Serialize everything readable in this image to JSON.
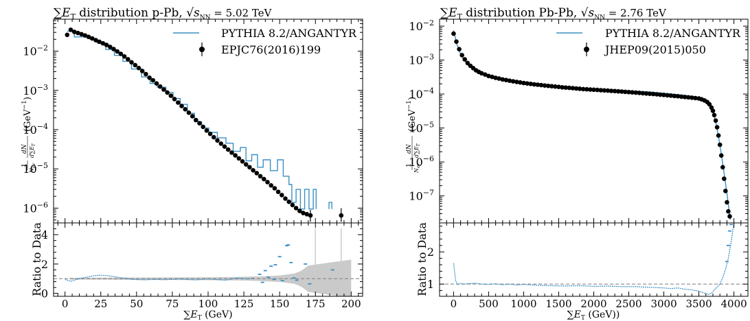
{
  "figure": "Two-panel ΣET distribution comparison",
  "chart_data": [
    {
      "type": "line",
      "title": "∑E_T distribution p-Pb, √s_NN = 5.02 TeV",
      "title_parts": {
        "sum": "∑",
        "E": "E",
        "T": "T",
        "text": " distribution p-Pb, ",
        "sqrt": "√",
        "s": "s",
        "NN": "NN",
        "energy": " = 5.02 TeV"
      },
      "xlabel": "∑E_T (GeV)",
      "xlabel_parts": {
        "sum": "∑",
        "E": "E",
        "T": "T",
        "unit": " (GeV)"
      },
      "ylabel": "1/N_ev dN/d∑E_T (GeV^-1)",
      "ylabel_parts": {
        "one": "1",
        "nev": "N",
        "ev": "ev",
        "dn": "dN",
        "dsum": "d∑E",
        "t": "T",
        "unit": "(GeV",
        "exp": "−1",
        "close": ")"
      },
      "ratio_ylabel": "Ratio to Data",
      "xlim": [
        -8,
        208
      ],
      "ylim": [
        4.2e-07,
        0.065
      ],
      "yscale": "log",
      "x_ticks": [
        0,
        25,
        50,
        75,
        100,
        125,
        150,
        175,
        200
      ],
      "x_tick_labels": [
        "0",
        "25",
        "50",
        "75",
        "100",
        "125",
        "150",
        "175",
        "200"
      ],
      "y_ticks": [
        1e-06,
        1e-05,
        0.0001,
        0.001,
        0.01
      ],
      "y_tick_labels": [
        {
          "b": "10",
          "e": "−6"
        },
        {
          "b": "10",
          "e": "−5"
        },
        {
          "b": "10",
          "e": "−4"
        },
        {
          "b": "10",
          "e": "−3"
        },
        {
          "b": "10",
          "e": "−2"
        }
      ],
      "ratio_ylim": [
        -0.2,
        4.8
      ],
      "ratio_y_ticks": [
        0,
        2,
        4
      ],
      "ratio_y_tick_labels": [
        "0",
        "2",
        "4"
      ],
      "legend": {
        "position": "top-right",
        "entries": [
          "PYTHIA 8.2/ANGANTYR",
          "EPJC76(2016)199"
        ]
      },
      "colors": {
        "mc": "#3a8fc4",
        "data": "#000000",
        "band": "#bdbdbd",
        "reference": "#888888"
      },
      "mc_step_segments": [
        [
          [
            1.5,
            0.032
          ],
          [
            6.5,
            0.032
          ],
          [
            6.5,
            0.023
          ],
          [
            13.5,
            0.023
          ],
          [
            13.5,
            0.024
          ],
          [
            17.5,
            0.024
          ],
          [
            17.5,
            0.02
          ],
          [
            22.5,
            0.02
          ],
          [
            22.5,
            0.016
          ],
          [
            28.5,
            0.016
          ],
          [
            28.5,
            0.011
          ],
          [
            34.5,
            0.011
          ],
          [
            34.5,
            0.0078
          ],
          [
            40.5,
            0.0078
          ],
          [
            40.5,
            0.0055
          ],
          [
            46.5,
            0.0055
          ],
          [
            46.5,
            0.0035
          ],
          [
            53.5,
            0.0035
          ],
          [
            53.5,
            0.0022
          ],
          [
            59.5,
            0.0022
          ],
          [
            59.5,
            0.0015
          ],
          [
            64.5,
            0.0015
          ],
          [
            64.5,
            0.0012
          ],
          [
            70.5,
            0.0012
          ],
          [
            70.5,
            0.00088
          ],
          [
            75.5,
            0.00088
          ],
          [
            75.5,
            0.00062
          ],
          [
            80.5,
            0.00062
          ],
          [
            80.5,
            0.00044
          ],
          [
            85.5,
            0.00044
          ],
          [
            85.5,
            0.00026
          ],
          [
            90.5,
            0.00026
          ],
          [
            90.5,
            0.00016
          ],
          [
            95.5,
            0.00016
          ],
          [
            95.5,
            0.00011
          ],
          [
            100.5,
            0.00011
          ],
          [
            100.5,
            8.5e-05
          ],
          [
            106.5,
            8.5e-05
          ],
          [
            106.5,
            6.2e-05
          ],
          [
            112.5,
            6.2e-05
          ],
          [
            112.5,
            4.5e-05
          ],
          [
            117.5,
            4.5e-05
          ],
          [
            117.5,
            2.8e-05
          ],
          [
            122.5,
            2.8e-05
          ],
          [
            122.5,
            3.5e-05
          ],
          [
            126.5,
            3.5e-05
          ],
          [
            126.5,
            1.6e-05
          ],
          [
            130.5,
            1.6e-05
          ],
          [
            130.5,
            2.3e-05
          ],
          [
            134.5,
            2.3e-05
          ],
          [
            134.5,
            1.1e-05
          ],
          [
            138.5,
            1.1e-05
          ],
          [
            138.5,
            1.7e-05
          ],
          [
            143.5,
            1.7e-05
          ],
          [
            143.5,
            9e-06
          ],
          [
            148.5,
            9e-06
          ],
          [
            148.5,
            1.7e-05
          ],
          [
            152.5,
            1.7e-05
          ],
          [
            152.5,
            6.5e-06
          ],
          [
            156.5,
            6.5e-06
          ],
          [
            156.5,
            4e-06
          ],
          [
            158.5,
            4e-06
          ],
          [
            158.5,
            1.4e-06
          ],
          [
            161.5,
            1.4e-06
          ],
          [
            161.5,
            3e-06
          ],
          [
            164.5,
            3e-06
          ],
          [
            164.5,
            9.5e-07
          ],
          [
            167.5,
            9.5e-07
          ],
          [
            167.5,
            3e-06
          ],
          [
            170.5,
            3e-06
          ],
          [
            170.5,
            9.5e-07
          ],
          [
            173.5,
            9.5e-07
          ],
          [
            173.5,
            3e-06
          ],
          [
            175.5,
            3e-06
          ],
          [
            175.5,
            9.5e-07
          ]
        ],
        [
          [
            184.5,
            9.5e-07
          ],
          [
            184.5,
            1.4e-06
          ],
          [
            186.5,
            1.4e-06
          ],
          [
            186.5,
            9.5e-07
          ]
        ]
      ],
      "data_x": [
        1.5,
        4.0,
        6.5,
        9.0,
        11.5,
        14.0,
        16.5,
        19.0,
        21.5,
        24.0,
        26.5,
        29.0,
        31.5,
        34.0,
        36.5,
        39.0,
        41.5,
        44.0,
        46.5,
        49.0,
        51.5,
        54.0,
        56.5,
        59.0,
        61.5,
        64.0,
        66.5,
        69.0,
        71.5,
        74.0,
        76.5,
        79.0,
        81.5,
        84.0,
        86.5,
        89.0,
        91.5,
        94.0,
        96.5,
        99.0,
        101.5,
        104.0,
        106.5,
        109.0,
        111.5,
        114.0,
        116.5,
        119.0,
        121.5,
        124.0,
        126.5,
        129.0,
        131.5,
        134.0,
        136.5,
        139.0,
        141.5,
        144.0,
        146.5,
        149.0,
        151.5,
        154.0,
        156.5,
        159.0,
        161.5,
        164.0,
        166.5,
        169.0,
        171.5,
        193.0
      ],
      "data_y": [
        0.026,
        0.035,
        0.031,
        0.029,
        0.027,
        0.025,
        0.023,
        0.021,
        0.019,
        0.0173,
        0.0158,
        0.0144,
        0.0128,
        0.0113,
        0.0098,
        0.0085,
        0.0073,
        0.0062,
        0.0052,
        0.0044,
        0.0037,
        0.0031,
        0.0026,
        0.0021,
        0.0018,
        0.0015,
        0.00125,
        0.00105,
        0.00088,
        0.00073,
        0.0006,
        0.00049,
        0.0004,
        0.00033,
        0.00027,
        0.00022,
        0.000175,
        0.000145,
        0.000118,
        9.5e-05,
        7.8e-05,
        6.4e-05,
        5.3e-05,
        4.4e-05,
        3.7e-05,
        3.1e-05,
        2.6e-05,
        2.2e-05,
        1.85e-05,
        1.55e-05,
        1.3e-05,
        1.1e-05,
        9.2e-06,
        7.8e-06,
        6.5e-06,
        5.5e-06,
        4.6e-06,
        3.8e-06,
        3.2e-06,
        2.6e-06,
        2.15e-06,
        1.75e-06,
        1.45e-06,
        1.2e-06,
        1e-06,
        8.5e-07,
        7.5e-07,
        7e-07,
        6.5e-07,
        6.5e-07
      ],
      "data_err_bars": [
        [
          171.5,
          4.5e-07,
          9e-07
        ],
        [
          193.0,
          4.5e-07,
          1e-06
        ]
      ],
      "data_err_x": [
        3.0,
        6.0,
        8.0,
        12.0,
        17.0,
        25.0,
        40.0,
        60.0,
        80.0,
        100.0,
        120.0,
        130.0,
        140.0,
        150.0,
        160.0,
        163.0,
        166.0,
        170.0,
        200.0
      ],
      "data_err_half": [
        0.055,
        0.055,
        0.06,
        0.06,
        0.065,
        0.07,
        0.08,
        0.08,
        0.09,
        0.1,
        0.12,
        0.14,
        0.17,
        0.22,
        0.35,
        0.45,
        0.6,
        0.9,
        1.3
      ],
      "ratio_line_x": [
        0,
        4,
        8,
        12,
        16,
        20,
        24,
        28,
        32,
        36,
        40,
        44,
        48,
        52,
        56,
        60,
        64,
        68,
        72,
        76,
        80,
        84,
        88,
        92,
        96,
        100,
        104,
        108,
        112,
        116,
        120,
        124,
        128,
        132
      ],
      "ratio_line_y": [
        0.95,
        0.82,
        0.95,
        1.05,
        1.12,
        1.2,
        1.24,
        1.22,
        1.18,
        1.12,
        1.05,
        1.0,
        0.95,
        0.93,
        0.92,
        0.94,
        0.95,
        0.93,
        0.94,
        0.96,
        0.98,
        0.96,
        0.93,
        0.92,
        0.96,
        0.98,
        0.95,
        0.93,
        0.9,
        0.97,
        1.05,
        1.02,
        0.98,
        1.05
      ],
      "ratio_scatter_x": [
        136.0,
        138.0,
        140.0,
        142.0,
        144.0,
        146.0,
        147.0,
        150.0,
        152.0,
        155.0,
        156.0,
        158.0,
        160.0,
        162.0,
        168.0,
        171.0,
        187.0
      ],
      "ratio_scatter_y": [
        1.3,
        0.75,
        1.55,
        1.1,
        1.85,
        0.95,
        1.95,
        2.5,
        0.88,
        3.25,
        3.3,
        2.1,
        1.05,
        0.9,
        2.0,
        0.65,
        1.6
      ],
      "ratio_gray_lines": [
        175.0,
        193.0
      ]
    },
    {
      "type": "line",
      "title": "∑E_T distribution Pb-Pb, √s_NN = 2.76 TeV",
      "title_parts": {
        "sum": "∑",
        "E": "E",
        "T": "T",
        "text": " distribution Pb-Pb, ",
        "sqrt": "√",
        "s": "s",
        "NN": "NN",
        "energy": " = 2.76 TeV"
      },
      "xlabel": "∑E_T (GeV))",
      "xlabel_parts": {
        "sum": "∑",
        "E": "E",
        "T": "T",
        "unit": " (GeV))"
      },
      "ylabel": "1/N_ev dN/d∑E_T (GeV^-1)",
      "ylabel_parts": {
        "one": "1",
        "nev": "N",
        "ev": "ev",
        "dn": "dN",
        "dsum": "d∑E",
        "t": "T",
        "unit": "(GeV",
        "exp": "−1",
        "close": ")"
      },
      "ratio_ylabel": "Ratio to Data",
      "xlim": [
        -200,
        4200
      ],
      "ylim": [
        1.6e-08,
        0.016
      ],
      "yscale": "log",
      "x_ticks": [
        0,
        500,
        1000,
        1500,
        2000,
        2500,
        3000,
        3500,
        4000
      ],
      "x_tick_labels": [
        "0",
        "500",
        "1000",
        "1500",
        "2000",
        "2500",
        "3000",
        "3500",
        "4000"
      ],
      "y_ticks": [
        1e-07,
        1e-06,
        1e-05,
        0.0001,
        0.001,
        0.01
      ],
      "y_tick_labels": [
        {
          "b": "10",
          "e": "−7"
        },
        {
          "b": "10",
          "e": "−6"
        },
        {
          "b": "10",
          "e": "−5"
        },
        {
          "b": "10",
          "e": "−4"
        },
        {
          "b": "10",
          "e": "−3"
        },
        {
          "b": "10",
          "e": "−2"
        }
      ],
      "ratio_ylim": [
        0.62,
        2.9
      ],
      "ratio_y_ticks": [
        1,
        2
      ],
      "ratio_y_tick_labels": [
        "1",
        "2"
      ],
      "legend": {
        "position": "top-right",
        "entries": [
          "PYTHIA 8.2/ANGANTYR",
          "JHEP09(2015)050"
        ]
      },
      "colors": {
        "mc": "#3a8fc4",
        "data": "#000000",
        "band": "#bdbdbd",
        "reference": "#888888"
      },
      "mc_line_x": [
        0,
        50,
        100,
        150,
        200,
        300,
        400,
        500,
        700,
        1000,
        1500,
        2000,
        2500,
        2800,
        3000,
        3200,
        3400,
        3500,
        3600,
        3650,
        3700,
        3750,
        3800,
        3850,
        3900,
        3930,
        3950
      ],
      "mc_line_y": [
        0.0075,
        0.0028,
        0.0015,
        0.001,
        0.00075,
        0.00052,
        0.0004,
        0.00033,
        0.00026,
        0.000205,
        0.000165,
        0.000143,
        0.000125,
        0.000115,
        0.000106,
        9.6e-05,
        8.6e-05,
        8e-05,
        7e-05,
        5.5e-05,
        3.2e-05,
        1.2e-05,
        3.2e-06,
        6.5e-07,
        1.2e-07,
        4e-08,
        2e-08
      ],
      "data_x": [
        0,
        40,
        80,
        120,
        160,
        200,
        240,
        280,
        320,
        360,
        400,
        450,
        500,
        550,
        600,
        650,
        700,
        750,
        800,
        850,
        900,
        950,
        1000,
        1050,
        1100,
        1150,
        1200,
        1250,
        1300,
        1350,
        1400,
        1450,
        1500,
        1550,
        1600,
        1650,
        1700,
        1750,
        1800,
        1850,
        1900,
        1950,
        2000,
        2050,
        2100,
        2150,
        2200,
        2250,
        2300,
        2350,
        2400,
        2450,
        2500,
        2550,
        2600,
        2650,
        2700,
        2750,
        2800,
        2850,
        2900,
        2950,
        3000,
        3050,
        3100,
        3150,
        3200,
        3250,
        3300,
        3350,
        3400,
        3450,
        3500,
        3540,
        3580,
        3620,
        3650,
        3680,
        3700,
        3720,
        3740,
        3760,
        3780,
        3800,
        3820,
        3840,
        3860,
        3880,
        3900,
        3920,
        3940
      ],
      "data_y": [
        0.006,
        0.0035,
        0.0021,
        0.0014,
        0.00105,
        0.00082,
        0.00068,
        0.00058,
        0.0005,
        0.00045,
        0.00041,
        0.000375,
        0.00034,
        0.00032,
        0.0003,
        0.000285,
        0.00027,
        0.000258,
        0.000247,
        0.000237,
        0.000228,
        0.00022,
        0.000212,
        0.000205,
        0.000199,
        0.000193,
        0.000188,
        0.000183,
        0.000178,
        0.000174,
        0.00017,
        0.000166,
        0.000162,
        0.000158,
        0.000155,
        0.000152,
        0.000149,
        0.000146,
        0.000143,
        0.00014,
        0.000138,
        0.000136,
        0.000134,
        0.000132,
        0.00013,
        0.000128,
        0.000126,
        0.000124,
        0.000122,
        0.00012,
        0.000118,
        0.000116,
        0.000114,
        0.000112,
        0.00011,
        0.000108,
        0.000106,
        0.000104,
        0.000102,
        0.0001,
        9.8e-05,
        9.6e-05,
        9.4e-05,
        9.2e-05,
        9e-05,
        8.8e-05,
        8.6e-05,
        8.4e-05,
        8.2e-05,
        8e-05,
        7.8e-05,
        7.6e-05,
        7.4e-05,
        7e-05,
        6.5e-05,
        5.8e-05,
        5e-05,
        4e-05,
        3.2e-05,
        2.4e-05,
        1.65e-05,
        1.05e-05,
        6e-06,
        3.2e-06,
        1.55e-06,
        7e-07,
        3.2e-07,
        1.4e-07,
        6.5e-08,
        3.5e-08,
        2.5e-08
      ],
      "ratio_line_x": [
        0,
        30,
        60,
        100,
        150,
        200,
        300,
        400,
        500,
        600,
        700,
        800,
        900,
        1000,
        1200,
        1400,
        1600,
        1800,
        2000,
        2200,
        2400,
        2600,
        2800,
        3000,
        3100,
        3200,
        3300,
        3400,
        3450,
        3500,
        3550,
        3600,
        3640,
        3680,
        3720,
        3760,
        3800,
        3840,
        3880,
        3920,
        3960,
        4000
      ],
      "ratio_line_y": [
        1.65,
        1.1,
        0.98,
        1.02,
        1.0,
        1.01,
        1.03,
        1.0,
        0.99,
        1.01,
        0.98,
        1.0,
        0.97,
        0.99,
        0.96,
        0.95,
        0.94,
        0.95,
        0.93,
        0.94,
        0.92,
        0.92,
        0.9,
        0.88,
        0.86,
        0.88,
        0.84,
        0.82,
        0.8,
        0.78,
        0.74,
        0.7,
        0.68,
        0.72,
        0.82,
        0.9,
        1.0,
        1.2,
        1.45,
        1.8,
        2.3,
        2.9
      ],
      "ratio_scatter_x": [
        3900,
        3920,
        3940,
        3960
      ],
      "ratio_scatter_y": [
        1.7,
        2.2,
        2.65,
        2.85
      ]
    }
  ]
}
